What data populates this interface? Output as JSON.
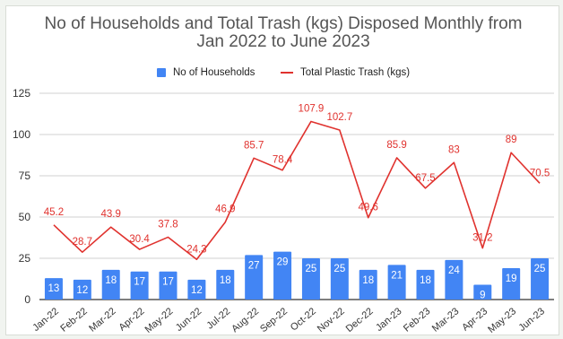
{
  "colors": {
    "bar": "#4285f4",
    "line": "#e0322e",
    "grid": "#d0d0d0",
    "axis": "#333333"
  },
  "chart_data": {
    "type": "bar+line",
    "title_lines": [
      "No of Households and Total Trash (kgs) Disposed Monthly from",
      "Jan 2022 to June 2023"
    ],
    "categories": [
      "Jan-22",
      "Feb-22",
      "Mar-22",
      "Apr-22",
      "May-22",
      "Jun-22",
      "Jul-22",
      "Aug-22",
      "Sep-22",
      "Oct-22",
      "Nov-22",
      "Dec-22",
      "Jan-23",
      "Feb-23",
      "Mar-23",
      "Apr-23",
      "May-23",
      "Jun-23"
    ],
    "series": [
      {
        "name": "No of Households",
        "type": "bar",
        "values": [
          13,
          12,
          18,
          17,
          17,
          12,
          18,
          27,
          29,
          25,
          25,
          18,
          21,
          18,
          24,
          9,
          19,
          25
        ]
      },
      {
        "name": "Total Plastic Trash (kgs)",
        "type": "line",
        "values": [
          45.2,
          28.7,
          43.9,
          30.4,
          37.8,
          24.3,
          46.9,
          85.7,
          78.4,
          107.9,
          102.7,
          49.6,
          85.9,
          67.5,
          83,
          31.2,
          89,
          70.5
        ]
      }
    ],
    "y_ticks": [
      "0",
      "25",
      "50",
      "75",
      "100",
      "125"
    ],
    "ylim": [
      0,
      125
    ],
    "legend_position": "top",
    "grid": true
  }
}
